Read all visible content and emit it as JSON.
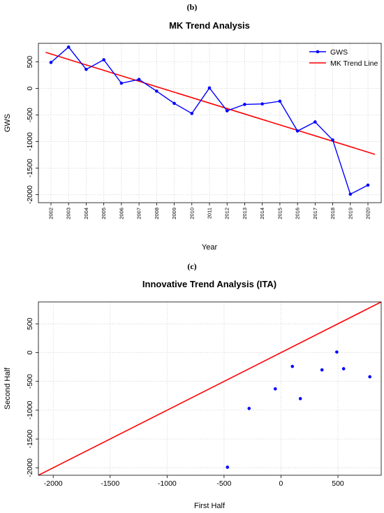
{
  "chart_data": [
    {
      "panel_label": "(b)",
      "type": "line",
      "title": "MK Trend Analysis",
      "xlabel": "Year",
      "ylabel": "GWS",
      "ylim": [
        -2150,
        850
      ],
      "yticks": [
        500,
        0,
        -500,
        -1000,
        -1500,
        -2000
      ],
      "ytick_labels": [
        "500",
        "0",
        "-500",
        "-1000",
        "-1500",
        "-2000"
      ],
      "grid": true,
      "legend_position": "top-right",
      "categories": [
        "2002",
        "2003",
        "2004",
        "2005",
        "2006",
        "2007",
        "2008",
        "2009",
        "2010",
        "2011",
        "2012",
        "2013",
        "2014",
        "2015",
        "2016",
        "2017",
        "2018",
        "2019",
        "2020"
      ],
      "series": [
        {
          "name": "GWS",
          "color": "#0000ff",
          "marker": "circle",
          "values": [
            490,
            780,
            360,
            540,
            100,
            170,
            -50,
            -280,
            -470,
            10,
            -420,
            -300,
            -290,
            -240,
            -800,
            -630,
            -970,
            -1990,
            -1820
          ]
        },
        {
          "name": "MK Trend Line",
          "color": "#ff0000",
          "line_start": [
            2001.7,
            680
          ],
          "line_end": [
            2020.4,
            -1240
          ]
        }
      ]
    },
    {
      "panel_label": "(c)",
      "type": "scatter",
      "title": "Innovative Trend Analysis (ITA)",
      "xlabel": "First Half",
      "ylabel": "Second Half",
      "xlim": [
        -2130,
        880
      ],
      "ylim": [
        -2130,
        880
      ],
      "xticks": [
        -2000,
        -1500,
        -1000,
        -500,
        0,
        500
      ],
      "xtick_labels": [
        "-2000",
        "-1500",
        "-1000",
        "-500",
        "0",
        "500"
      ],
      "yticks": [
        500,
        0,
        -500,
        -1000,
        -1500,
        -2000
      ],
      "ytick_labels": [
        "500",
        "0",
        "-500",
        "-1000",
        "-1500",
        "-2000"
      ],
      "grid": true,
      "reference_line": {
        "color": "#ff0000",
        "slope": 1
      },
      "points": [
        {
          "x": 780,
          "y": -420
        },
        {
          "x": 550,
          "y": -280
        },
        {
          "x": 490,
          "y": 10
        },
        {
          "x": 360,
          "y": -300
        },
        {
          "x": 170,
          "y": -800
        },
        {
          "x": 100,
          "y": -240
        },
        {
          "x": -50,
          "y": -630
        },
        {
          "x": -280,
          "y": -970
        },
        {
          "x": -470,
          "y": -1990
        }
      ],
      "point_color": "#0000ff"
    }
  ]
}
